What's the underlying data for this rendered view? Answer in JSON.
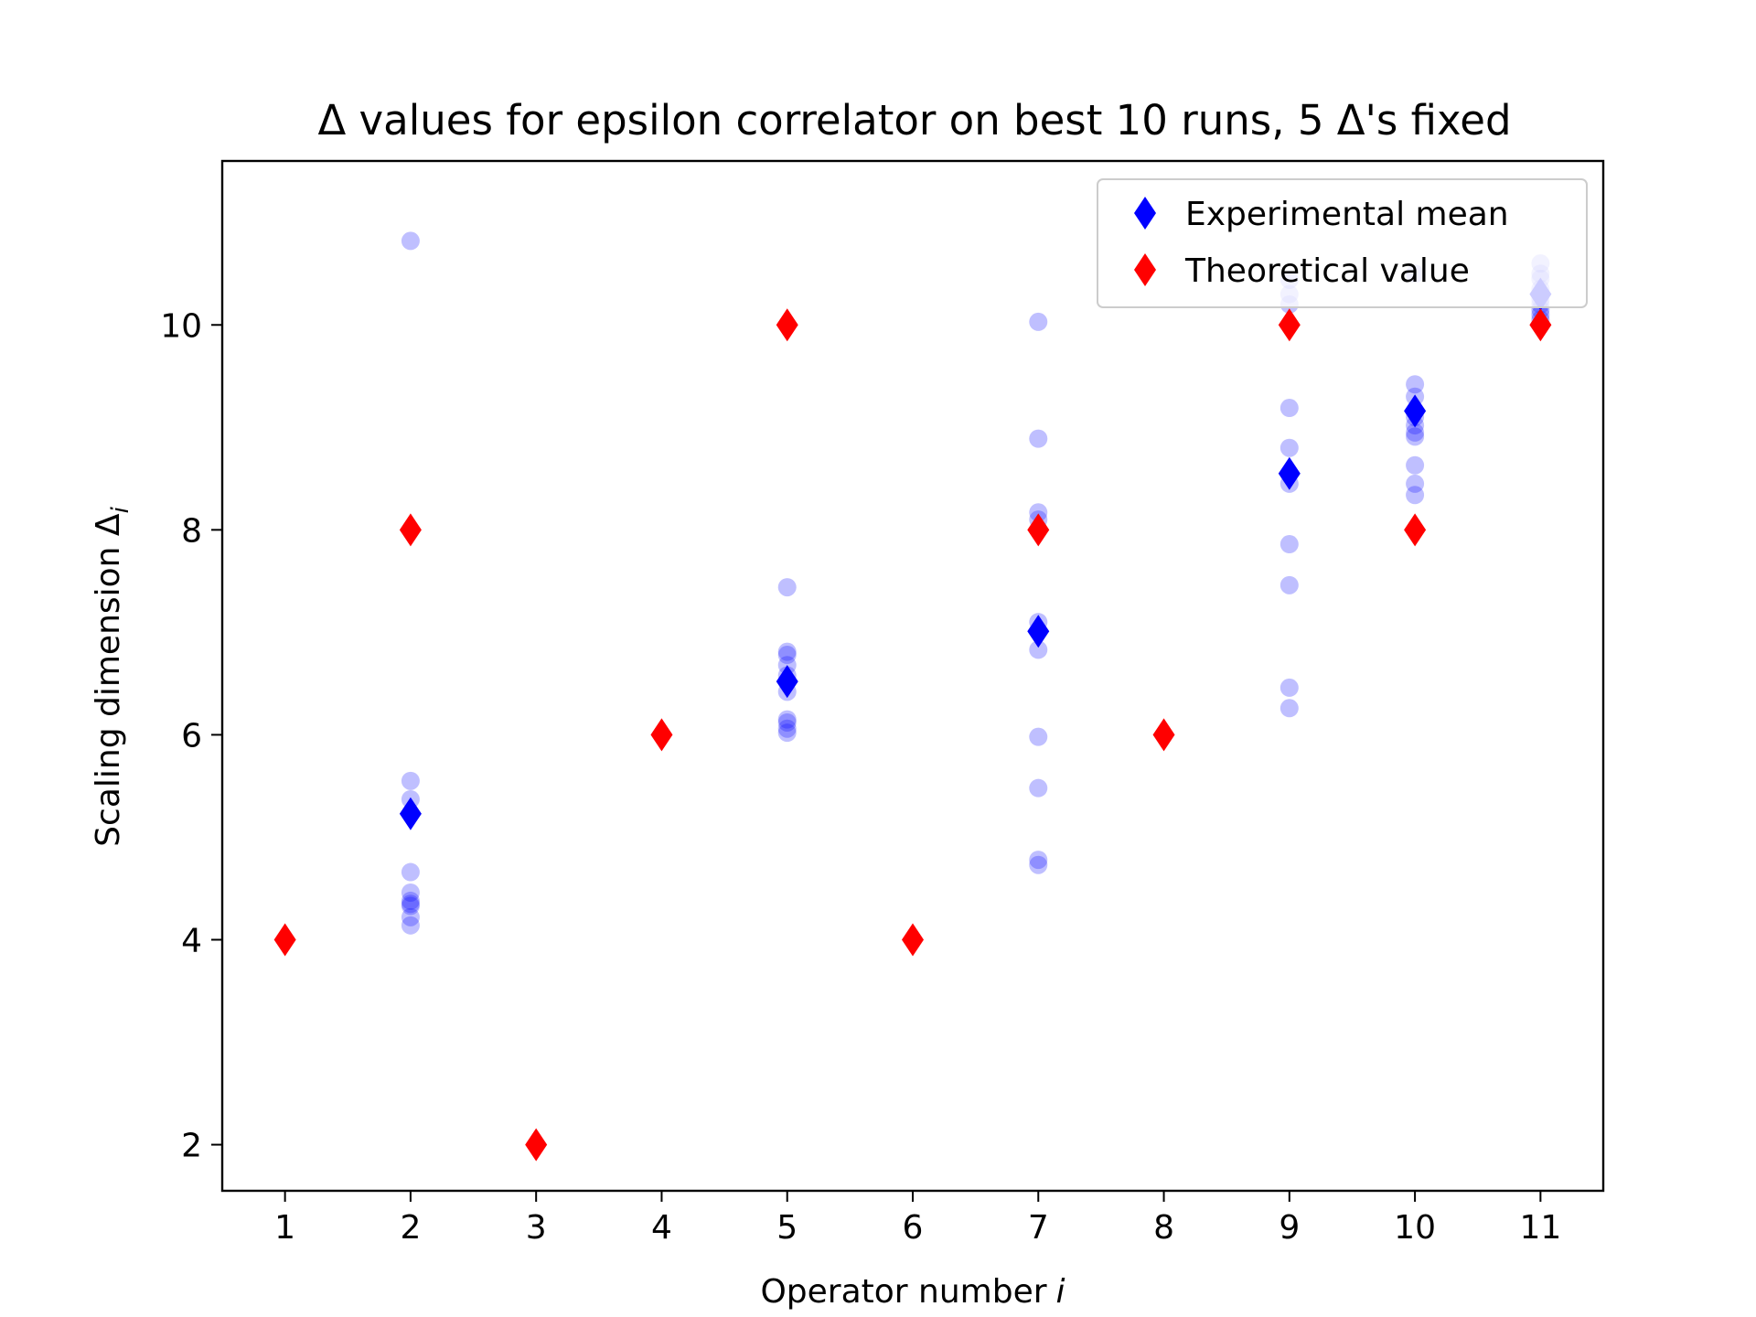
{
  "chart_data": {
    "type": "scatter",
    "title": "Δ values for epsilon correlator on best 10 runs, 5 Δ's fixed",
    "xlabel": "Operator number",
    "xlabel_italic": "i",
    "ylabel": "Scaling dimension Δ",
    "ylabel_subscript": "i",
    "xlim": [
      0.5,
      11.5
    ],
    "ylim": [
      1.55,
      11.6
    ],
    "x_ticks": [
      "1",
      "2",
      "3",
      "4",
      "5",
      "6",
      "7",
      "8",
      "9",
      "10",
      "11"
    ],
    "y_ticks": [
      "2",
      "4",
      "6",
      "8",
      "10"
    ],
    "grid": false,
    "legend_position": "upper right",
    "run_points": {
      "color": "#0000ff",
      "opacity": 0.25,
      "points": [
        {
          "x": 2,
          "y": 10.82
        },
        {
          "x": 2,
          "y": 5.55
        },
        {
          "x": 2,
          "y": 5.37
        },
        {
          "x": 2,
          "y": 4.66
        },
        {
          "x": 2,
          "y": 4.46
        },
        {
          "x": 2,
          "y": 4.38
        },
        {
          "x": 2,
          "y": 4.33
        },
        {
          "x": 2,
          "y": 4.22
        },
        {
          "x": 2,
          "y": 4.14
        },
        {
          "x": 2,
          "y": 4.35
        },
        {
          "x": 5,
          "y": 7.44
        },
        {
          "x": 5,
          "y": 6.81
        },
        {
          "x": 5,
          "y": 6.78
        },
        {
          "x": 5,
          "y": 6.68
        },
        {
          "x": 5,
          "y": 6.42
        },
        {
          "x": 5,
          "y": 6.15
        },
        {
          "x": 5,
          "y": 6.12
        },
        {
          "x": 5,
          "y": 6.06
        },
        {
          "x": 5,
          "y": 6.02
        },
        {
          "x": 5,
          "y": 6.58
        },
        {
          "x": 7,
          "y": 10.03
        },
        {
          "x": 7,
          "y": 8.89
        },
        {
          "x": 7,
          "y": 8.17
        },
        {
          "x": 7,
          "y": 8.1
        },
        {
          "x": 7,
          "y": 6.83
        },
        {
          "x": 7,
          "y": 5.98
        },
        {
          "x": 7,
          "y": 5.48
        },
        {
          "x": 7,
          "y": 4.78
        },
        {
          "x": 7,
          "y": 4.73
        },
        {
          "x": 7,
          "y": 7.1
        },
        {
          "x": 9,
          "y": 10.44
        },
        {
          "x": 9,
          "y": 10.3
        },
        {
          "x": 9,
          "y": 10.2
        },
        {
          "x": 9,
          "y": 9.19
        },
        {
          "x": 9,
          "y": 8.8
        },
        {
          "x": 9,
          "y": 8.45
        },
        {
          "x": 9,
          "y": 7.86
        },
        {
          "x": 9,
          "y": 7.46
        },
        {
          "x": 9,
          "y": 6.46
        },
        {
          "x": 9,
          "y": 6.26
        },
        {
          "x": 10,
          "y": 10.5
        },
        {
          "x": 10,
          "y": 9.42
        },
        {
          "x": 10,
          "y": 9.02
        },
        {
          "x": 10,
          "y": 8.95
        },
        {
          "x": 10,
          "y": 8.91
        },
        {
          "x": 10,
          "y": 8.63
        },
        {
          "x": 10,
          "y": 8.45
        },
        {
          "x": 10,
          "y": 8.34
        },
        {
          "x": 10,
          "y": 9.1
        },
        {
          "x": 10,
          "y": 9.3
        },
        {
          "x": 11,
          "y": 10.6
        },
        {
          "x": 11,
          "y": 10.45
        },
        {
          "x": 11,
          "y": 10.3
        },
        {
          "x": 11,
          "y": 10.2
        },
        {
          "x": 11,
          "y": 10.15
        },
        {
          "x": 11,
          "y": 10.05
        },
        {
          "x": 11,
          "y": 10.1
        },
        {
          "x": 11,
          "y": 10.25
        },
        {
          "x": 11,
          "y": 10.35
        },
        {
          "x": 11,
          "y": 10.5
        }
      ]
    },
    "series": [
      {
        "name": "Experimental mean",
        "color": "#0000ff",
        "marker": "thin_diamond",
        "points": [
          {
            "x": 2,
            "y": 5.23
          },
          {
            "x": 5,
            "y": 6.52
          },
          {
            "x": 7,
            "y": 7.01
          },
          {
            "x": 9,
            "y": 8.55
          },
          {
            "x": 10,
            "y": 9.16
          },
          {
            "x": 11,
            "y": 10.3
          }
        ]
      },
      {
        "name": "Theoretical value",
        "color": "#ff0000",
        "marker": "thin_diamond",
        "points": [
          {
            "x": 1,
            "y": 4
          },
          {
            "x": 2,
            "y": 8
          },
          {
            "x": 3,
            "y": 2
          },
          {
            "x": 4,
            "y": 6
          },
          {
            "x": 5,
            "y": 10
          },
          {
            "x": 6,
            "y": 4
          },
          {
            "x": 7,
            "y": 8
          },
          {
            "x": 8,
            "y": 6
          },
          {
            "x": 9,
            "y": 10
          },
          {
            "x": 10,
            "y": 8
          },
          {
            "x": 11,
            "y": 10
          }
        ]
      }
    ]
  }
}
